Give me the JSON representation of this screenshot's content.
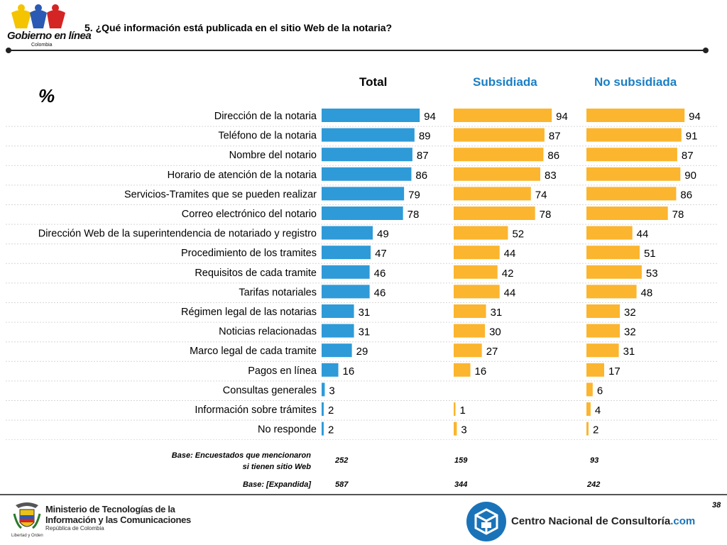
{
  "header": {
    "logo_text": "Gobierno en línea",
    "logo_subtext": "Colombia",
    "question": "5. ¿Qué información está publicada en el sitio Web de la notaria?"
  },
  "percent_symbol": "%",
  "chart_data": {
    "type": "bar",
    "orientation": "horizontal",
    "unit": "%",
    "categories": [
      "Dirección de la notaria",
      "Teléfono de la notaria",
      "Nombre del notario",
      "Horario de atención de la notaria",
      "Servicios-Tramites que se pueden realizar",
      "Correo electrónico del notario",
      "Dirección Web de la superintendencia de notariado y registro",
      "Procedimiento de los tramites",
      "Requisitos de cada tramite",
      "Tarifas notariales",
      "Régimen legal de las notarias",
      "Noticias relacionadas",
      "Marco legal de cada tramite",
      "Pagos en línea",
      "Consultas generales",
      "Información sobre trámites",
      "No responde"
    ],
    "series": [
      {
        "name": "Total",
        "color": "#2e9ad8",
        "values": [
          94,
          89,
          87,
          86,
          79,
          78,
          49,
          47,
          46,
          46,
          31,
          31,
          29,
          16,
          3,
          2,
          2
        ]
      },
      {
        "name": "Subsidiada",
        "color": "#fbb52e",
        "values": [
          94,
          87,
          86,
          83,
          74,
          78,
          52,
          44,
          42,
          44,
          31,
          30,
          27,
          16,
          null,
          1,
          3
        ]
      },
      {
        "name": "No subsidiada",
        "color": "#fbb52e",
        "values": [
          94,
          91,
          87,
          90,
          86,
          78,
          44,
          51,
          53,
          48,
          32,
          32,
          31,
          17,
          6,
          4,
          2
        ]
      }
    ],
    "xlim": [
      0,
      100
    ]
  },
  "column_heads": {
    "total": "Total",
    "subsidiada": "Subsidiada",
    "no_subsidiada": "No subsidiada",
    "subsidiada_color": "#1a7ec4"
  },
  "bases": {
    "row1_label_line1": "Base: Encuestados que mencionaron",
    "row1_label_line2": "si tienen sitio Web",
    "row1_values": [
      "252",
      "159",
      "93"
    ],
    "row2_label": "Base: [Expandida]",
    "row2_values": [
      "587",
      "344",
      "242"
    ]
  },
  "footer": {
    "ministry_line1": "Ministerio de Tecnologías de la",
    "ministry_line2": "Información y las Comunicaciones",
    "ministry_line3": "República de Colombia",
    "motto": "Libertad y Orden",
    "cnc_name": "Centro Nacional de Consultoría",
    "cnc_domain": ".com",
    "page_number": "38"
  }
}
